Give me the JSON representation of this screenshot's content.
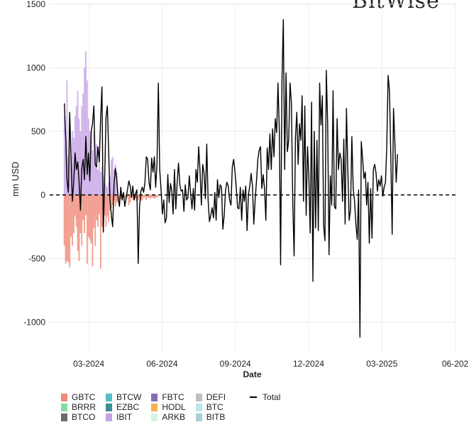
{
  "watermark": "BitWise",
  "chart_data": {
    "type": "bar",
    "stacked": true,
    "title": "",
    "xlabel": "Date",
    "ylabel": "mn USD",
    "ylim": [
      -1250,
      1500
    ],
    "y_ticks": [
      -1000,
      -500,
      0,
      500,
      1000,
      1500
    ],
    "x_ticks": [
      "03-2024",
      "06-2024",
      "09-2024",
      "12-2024",
      "03-2025",
      "06-202"
    ],
    "x_tick_positions": [
      1,
      4,
      7,
      10,
      13,
      16
    ],
    "x_range": [
      -0.6,
      16.1
    ],
    "zero_line": "dashed",
    "grid": true,
    "legend_position": "bottom",
    "legend": [
      "GBTC",
      "BRRR",
      "BTCO",
      "BTCW",
      "EZBC",
      "IBIT",
      "FBTC",
      "HODL",
      "ARKB",
      "DEFI",
      "BTC",
      "BITB"
    ],
    "line_legend": "Total",
    "colors": {
      "GBTC": "#F08A78",
      "BRRR": "#7FDBA6",
      "BTCO": "#6B6B6B",
      "BTCW": "#56BFC4",
      "EZBC": "#3E8E96",
      "IBIT": "#C5A3E6",
      "FBTC": "#8A6BB8",
      "HODL": "#F5B34F",
      "ARKB": "#D4F5E0",
      "DEFI": "#BFBFBF",
      "BTC": "#B8E8E8",
      "BITB": "#A8D0D6",
      "Total": "#000000"
    },
    "series": [
      {
        "name": "Total",
        "type": "line",
        "x_start": 0,
        "x_step": 0.055,
        "values": [
          720,
          450,
          120,
          20,
          650,
          300,
          -50,
          100,
          330,
          200,
          260,
          100,
          -120,
          210,
          280,
          120,
          460,
          160,
          330,
          110,
          500,
          560,
          700,
          240,
          220,
          380,
          260,
          600,
          850,
          -290,
          120,
          610,
          700,
          330,
          -40,
          -160,
          -250,
          80,
          210,
          130,
          -20,
          -90,
          60,
          -40,
          20,
          -90,
          -20,
          40,
          110,
          70,
          -20,
          70,
          -40,
          10,
          40,
          -540,
          -90,
          30,
          60,
          20,
          100,
          300,
          280,
          100,
          40,
          290,
          180,
          300,
          60,
          250,
          880,
          200,
          40,
          -150,
          -40,
          -220,
          -180,
          160,
          -60,
          90,
          30,
          -150,
          200,
          -110,
          100,
          250,
          80,
          30,
          40,
          -130,
          80,
          -40,
          -20,
          150,
          10,
          -110,
          50,
          -120,
          200,
          100,
          380,
          190,
          -80,
          240,
          170,
          -30,
          400,
          -40,
          -210,
          -160,
          -100,
          -180,
          20,
          -200,
          120,
          -20,
          80,
          60,
          -270,
          -160,
          40,
          100,
          70,
          -40,
          -80,
          220,
          280,
          180,
          50,
          -100,
          -110,
          60,
          -200,
          40,
          -50,
          70,
          -280,
          0,
          70,
          170,
          70,
          -230,
          -40,
          110,
          280,
          350,
          380,
          50,
          160,
          50,
          -200,
          370,
          200,
          480,
          200,
          520,
          300,
          600,
          490,
          880,
          500,
          -550,
          900,
          1380,
          200,
          960,
          340,
          430,
          880,
          720,
          -50,
          -480,
          450,
          650,
          240,
          560,
          430,
          780,
          -50,
          700,
          -160,
          380,
          140,
          -300,
          730,
          -680,
          500,
          -260,
          430,
          -280,
          880,
          550,
          780,
          -240,
          -360,
          980,
          560,
          -470,
          150,
          -80,
          820,
          -90,
          -110,
          600,
          200,
          330,
          280,
          -50,
          440,
          -230,
          680,
          200,
          -200,
          -120,
          460,
          50,
          -50,
          -230,
          -350,
          40,
          -1120,
          420,
          280,
          130,
          180,
          -80,
          100,
          -380,
          50,
          -340,
          200,
          240,
          170,
          30,
          120,
          70,
          150,
          -10,
          60,
          100,
          380,
          940,
          820,
          300,
          -310,
          680,
          420,
          100,
          320
        ]
      },
      {
        "name": "GBTC",
        "type": "bar",
        "x_start": 0,
        "x_step": 0.055,
        "values": [
          -400,
          -540,
          -520,
          -530,
          -570,
          -330,
          -400,
          -300,
          -170,
          -250,
          -440,
          -520,
          -300,
          -400,
          -200,
          -300,
          -160,
          -540,
          -330,
          -350,
          -380,
          -560,
          -260,
          -400,
          -200,
          -250,
          -150,
          -580,
          -250,
          -300,
          -160,
          -250,
          -170,
          -210,
          -120,
          -100,
          -80,
          -40,
          -90,
          -60,
          -50,
          -40,
          -30,
          -30,
          -20,
          -20,
          -30,
          -20,
          -80,
          -60,
          -20,
          -40,
          -20,
          -30,
          -50,
          -40,
          -30,
          -50,
          -40,
          -20,
          -20,
          -40,
          -20,
          -20,
          -30,
          -20,
          -20,
          -30,
          -20,
          -20
        ]
      },
      {
        "name": "IBIT",
        "type": "bar",
        "x_start": 0,
        "x_step": 0.055,
        "values": [
          620,
          380,
          900,
          300,
          560,
          250,
          500,
          450,
          620,
          700,
          820,
          600,
          500,
          700,
          800,
          1000,
          1130,
          900,
          600,
          500,
          450,
          350,
          500,
          300,
          400,
          200,
          300,
          180,
          220,
          150,
          100,
          80,
          60,
          100,
          150,
          280,
          300,
          200,
          240,
          180
        ]
      }
    ]
  }
}
